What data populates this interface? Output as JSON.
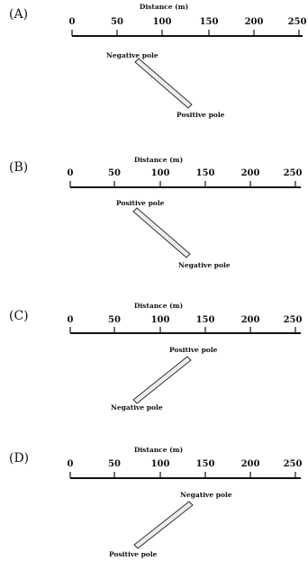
{
  "axis_title": "Distance (m)",
  "ticks": [
    "0",
    "50",
    "100",
    "150",
    "200",
    "250"
  ],
  "panels": [
    {
      "label": "(A)",
      "upper_pole": "Negative pole",
      "lower_pole": "Positive pole",
      "orientation": "upper-left to lower-right"
    },
    {
      "label": "(B)",
      "upper_pole": "Positive pole",
      "lower_pole": "Negative pole",
      "orientation": "upper-left to lower-right"
    },
    {
      "label": "(C)",
      "upper_pole": "Positive pole",
      "lower_pole": "Negative pole",
      "orientation": "upper-right to lower-left"
    },
    {
      "label": "(D)",
      "upper_pole": "Negative pole",
      "lower_pole": "Positive pole",
      "orientation": "upper-right to lower-left"
    }
  ]
}
